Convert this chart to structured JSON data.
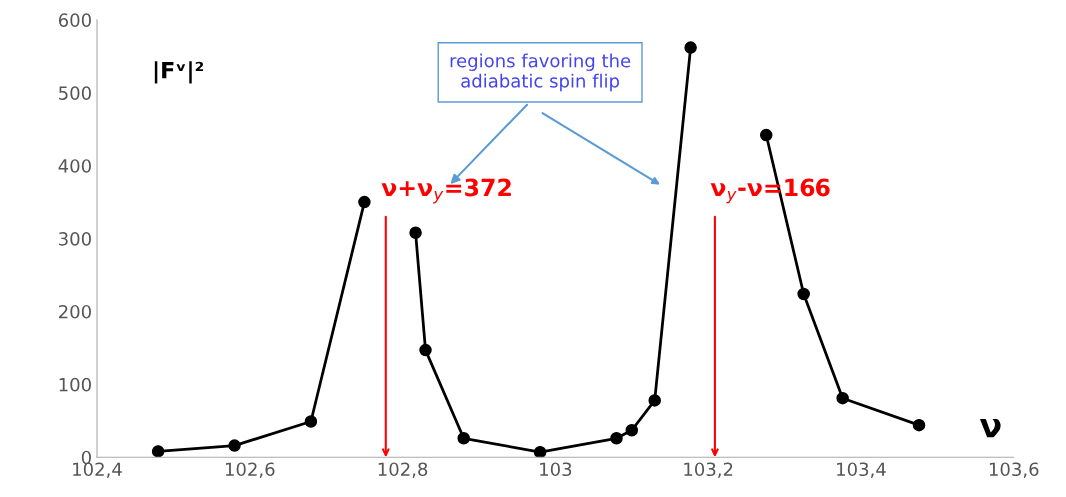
{
  "chart_data": {
    "type": "line",
    "xlabel": "ν",
    "series": [
      {
        "color": "#000000",
        "x": [
          102.48,
          102.58,
          102.68,
          102.75
        ],
        "values": [
          8,
          16,
          49,
          350
        ]
      },
      {
        "color": "#000000",
        "x": [
          102.817,
          102.83,
          102.88,
          102.98,
          103.08,
          103.1,
          103.13,
          103.177
        ],
        "values": [
          308,
          147,
          26,
          7,
          26,
          37,
          78,
          562
        ]
      },
      {
        "color": "#000000",
        "x": [
          103.276,
          103.325,
          103.376,
          103.476
        ],
        "values": [
          442,
          224,
          81,
          44
        ]
      }
    ],
    "marker": "circle",
    "line_style": "solid",
    "grid": false,
    "legend": false,
    "xlim": [
      102.4,
      103.6
    ],
    "xticks": [
      {
        "value": 102.4,
        "label": "102,4"
      },
      {
        "value": 102.6,
        "label": "102,6"
      },
      {
        "value": 102.8,
        "label": "102,8"
      },
      {
        "value": 103,
        "label": "103"
      },
      {
        "value": 103.2,
        "label": "103,2"
      },
      {
        "value": 103.4,
        "label": "103,4"
      },
      {
        "value": 103.6,
        "label": "103,6"
      }
    ],
    "ylim": [
      0,
      600
    ],
    "yticks": [
      0,
      100,
      200,
      300,
      400,
      500,
      600
    ],
    "annotations": [
      "|Fᵛ|²",
      "regions favoring the\nadiabatic spin flip",
      "ν+ν$_{y}$=372",
      "ν$_{y}$-ν=166"
    ]
  }
}
